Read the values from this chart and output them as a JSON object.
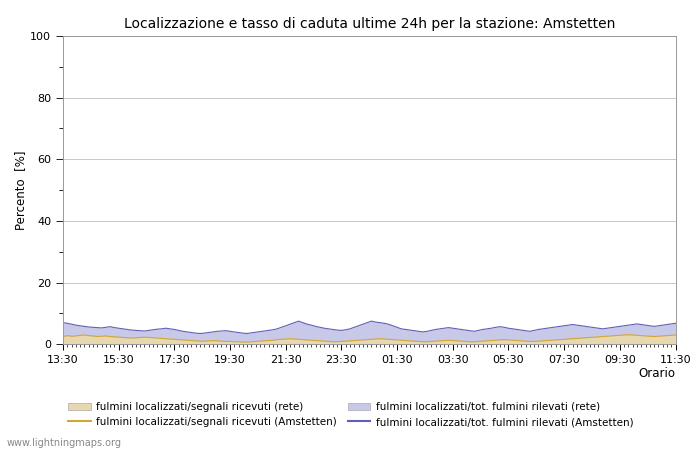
{
  "title": "Localizzazione e tasso di caduta ultime 24h per la stazione: Amstetten",
  "xlabel": "Orario",
  "ylabel": "Percento  [%]",
  "ylim": [
    0,
    100
  ],
  "yticks": [
    0,
    20,
    40,
    60,
    80,
    100
  ],
  "yticks_minor": [
    10,
    30,
    50,
    70,
    90
  ],
  "x_labels": [
    "13:30",
    "15:30",
    "17:30",
    "19:30",
    "21:30",
    "23:30",
    "01:30",
    "03:30",
    "05:30",
    "07:30",
    "09:30",
    "11:30"
  ],
  "background_color": "#ffffff",
  "plot_bg_color": "#ffffff",
  "grid_color": "#c8c8c8",
  "fill_rete_color": "#e8d8b0",
  "fill_amstetten_color": "#c8c8e8",
  "line_rete_color": "#d4a830",
  "line_amstetten_color": "#6060b8",
  "watermark": "www.lightningmaps.org",
  "legend": [
    {
      "label": "fulmini localizzati/segnali ricevuti (rete)",
      "type": "fill",
      "color": "#e8d8b0"
    },
    {
      "label": "fulmini localizzati/segnali ricevuti (Amstetten)",
      "type": "line",
      "color": "#d4a830"
    },
    {
      "label": "fulmini localizzati/tot. fulmini rilevati (rete)",
      "type": "fill",
      "color": "#c8c8e8"
    },
    {
      "label": "fulmini localizzati/tot. fulmini rilevati (Amstetten)",
      "type": "line",
      "color": "#6060b8"
    }
  ],
  "n_points": 144,
  "rete_fill_values": [
    2.5,
    2.8,
    2.6,
    2.7,
    2.9,
    3.0,
    2.8,
    2.7,
    2.5,
    2.6,
    2.7,
    2.5,
    2.4,
    2.3,
    2.2,
    2.1,
    2.0,
    2.1,
    2.2,
    2.3,
    2.2,
    2.1,
    2.0,
    1.9,
    1.8,
    1.7,
    1.6,
    1.5,
    1.4,
    1.3,
    1.2,
    1.1,
    1.0,
    1.0,
    1.1,
    1.2,
    1.1,
    1.0,
    0.9,
    0.9,
    0.8,
    0.8,
    0.7,
    0.7,
    0.8,
    0.9,
    1.0,
    1.1,
    1.2,
    1.3,
    1.5,
    1.6,
    1.7,
    1.8,
    1.7,
    1.6,
    1.5,
    1.4,
    1.3,
    1.2,
    1.1,
    1.0,
    0.9,
    0.8,
    0.8,
    0.9,
    1.0,
    1.1,
    1.2,
    1.3,
    1.4,
    1.5,
    1.6,
    1.7,
    1.8,
    1.7,
    1.6,
    1.5,
    1.4,
    1.3,
    1.2,
    1.1,
    1.0,
    0.9,
    0.8,
    0.8,
    0.9,
    1.0,
    1.1,
    1.2,
    1.3,
    1.2,
    1.1,
    1.0,
    0.9,
    0.8,
    0.8,
    0.9,
    1.0,
    1.1,
    1.2,
    1.3,
    1.4,
    1.5,
    1.4,
    1.3,
    1.2,
    1.1,
    1.0,
    0.9,
    0.9,
    1.0,
    1.1,
    1.2,
    1.3,
    1.4,
    1.5,
    1.6,
    1.7,
    1.8,
    1.9,
    2.0,
    2.1,
    2.2,
    2.3,
    2.4,
    2.5,
    2.6,
    2.7,
    2.8,
    2.9,
    3.0,
    3.1,
    3.0,
    2.9,
    2.8,
    2.7,
    2.6,
    2.5,
    2.6,
    2.7,
    2.8,
    2.9,
    3.0
  ],
  "amstetten_fill_values": [
    7.0,
    6.8,
    6.5,
    6.2,
    6.0,
    5.8,
    5.6,
    5.5,
    5.4,
    5.3,
    5.5,
    5.7,
    5.4,
    5.2,
    5.0,
    4.8,
    4.6,
    4.5,
    4.4,
    4.3,
    4.5,
    4.7,
    4.9,
    5.0,
    5.2,
    5.0,
    4.8,
    4.5,
    4.2,
    4.0,
    3.8,
    3.6,
    3.5,
    3.6,
    3.8,
    4.0,
    4.2,
    4.3,
    4.4,
    4.2,
    4.0,
    3.8,
    3.6,
    3.5,
    3.7,
    3.9,
    4.1,
    4.3,
    4.5,
    4.7,
    5.0,
    5.5,
    6.0,
    6.5,
    7.0,
    7.5,
    7.0,
    6.5,
    6.2,
    5.8,
    5.5,
    5.2,
    5.0,
    4.8,
    4.6,
    4.5,
    4.7,
    5.0,
    5.5,
    6.0,
    6.5,
    7.0,
    7.5,
    7.2,
    7.0,
    6.8,
    6.5,
    6.0,
    5.5,
    5.0,
    4.8,
    4.6,
    4.4,
    4.2,
    4.0,
    4.2,
    4.5,
    4.8,
    5.0,
    5.2,
    5.4,
    5.2,
    5.0,
    4.8,
    4.6,
    4.4,
    4.2,
    4.5,
    4.8,
    5.0,
    5.2,
    5.5,
    5.7,
    5.5,
    5.2,
    5.0,
    4.8,
    4.6,
    4.4,
    4.2,
    4.5,
    4.8,
    5.0,
    5.2,
    5.4,
    5.6,
    5.8,
    6.0,
    6.2,
    6.4,
    6.2,
    6.0,
    5.8,
    5.6,
    5.4,
    5.2,
    5.0,
    5.2,
    5.4,
    5.6,
    5.8,
    6.0,
    6.2,
    6.4,
    6.6,
    6.4,
    6.2,
    6.0,
    5.8,
    6.0,
    6.2,
    6.4,
    6.6,
    6.8
  ]
}
